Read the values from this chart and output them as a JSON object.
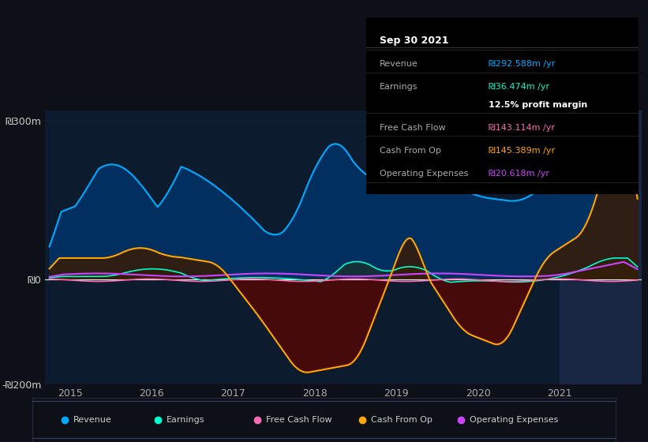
{
  "bg_color": "#0d1117",
  "plot_bg_color": "#0d1b2e",
  "highlight_bg": "#1a2744",
  "grid_color": "#2a3a55",
  "zero_line_color": "#ffffff",
  "ylim": [
    -200,
    320
  ],
  "yticks": [
    -200,
    0,
    300
  ],
  "ytick_labels": [
    "-₪200m",
    "₪0",
    "₪300m"
  ],
  "xlim_start": 2014.7,
  "xlim_end": 2022.0,
  "xtick_years": [
    2015,
    2016,
    2017,
    2018,
    2019,
    2020,
    2021
  ],
  "revenue_color": "#00aaff",
  "earnings_color": "#00ffcc",
  "fcf_color": "#ff69b4",
  "cashop_color": "#ffa500",
  "opex_color": "#cc44ff",
  "revenue_fill_color": "#003366",
  "cashop_fill_color": "#5a1a00",
  "tooltip_bg": "#000000",
  "tooltip_title": "Sep 30 2021",
  "tooltip_revenue": "₪292.588m /yr",
  "tooltip_earnings": "₪36.474m /yr",
  "tooltip_profit_margin": "12.5% profit margin",
  "tooltip_fcf": "₪143.114m /yr",
  "tooltip_cashop": "₪145.389m /yr",
  "tooltip_opex": "₪20.618m /yr",
  "legend_items": [
    "Revenue",
    "Earnings",
    "Free Cash Flow",
    "Cash From Op",
    "Operating Expenses"
  ]
}
